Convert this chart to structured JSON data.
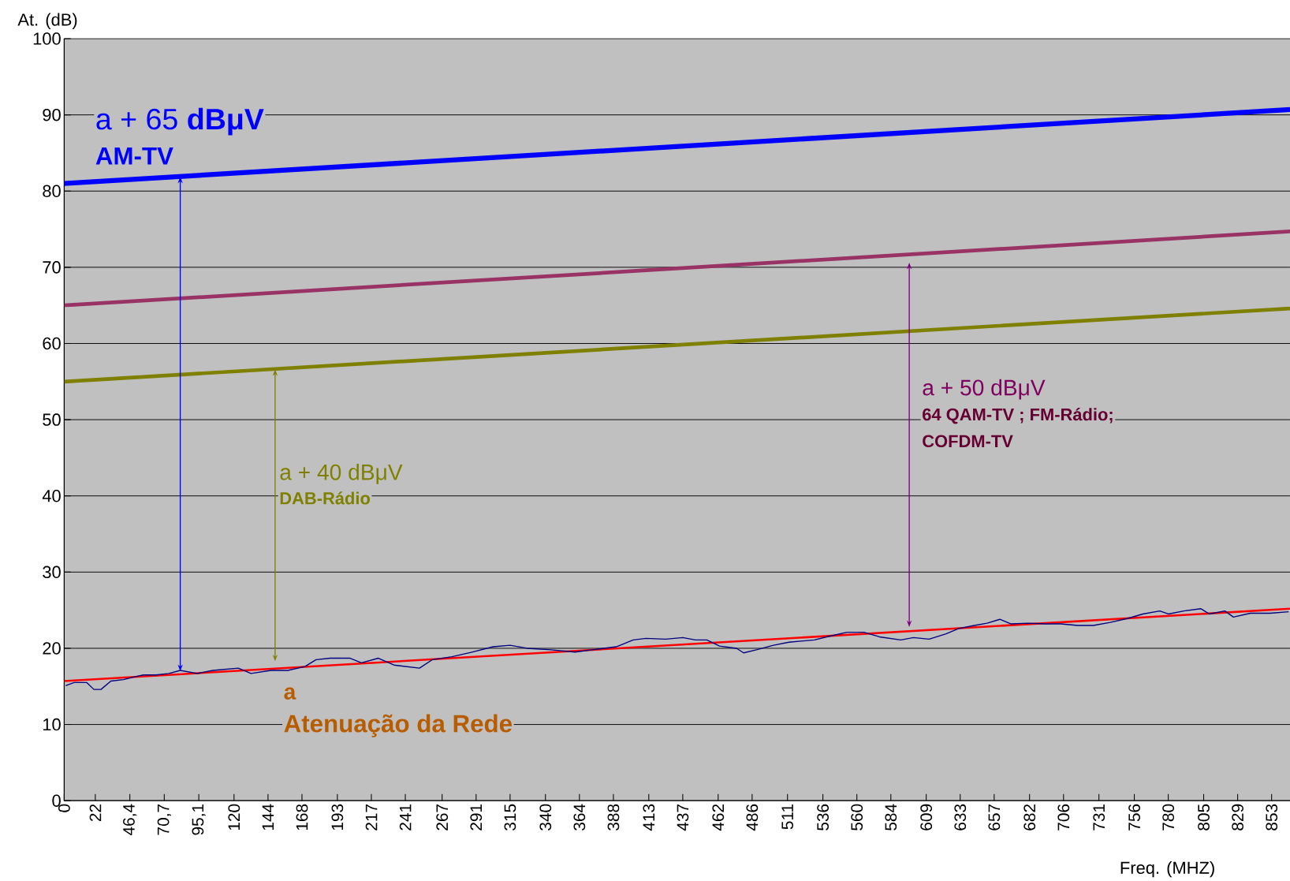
{
  "chart_data": {
    "type": "line",
    "xlabel": "Freq. (MHZ)",
    "ylabel": "At. (dB)",
    "xlim": [
      0,
      866
    ],
    "ylim": [
      0,
      100
    ],
    "xticks": [
      0,
      22,
      {
        "value": 46.4,
        "label": "46,4"
      },
      {
        "value": 70.7,
        "label": "70,7"
      },
      {
        "value": 95.1,
        "label": "95,1"
      },
      120,
      144,
      168,
      193,
      217,
      241,
      267,
      291,
      315,
      340,
      364,
      388,
      413,
      437,
      462,
      486,
      511,
      536,
      560,
      584,
      609,
      633,
      657,
      682,
      706,
      731,
      756,
      780,
      805,
      829,
      853
    ],
    "yticks": [
      0,
      10,
      20,
      30,
      40,
      50,
      60,
      70,
      80,
      90,
      100
    ],
    "grid": "y",
    "marker": "none",
    "series": [
      {
        "color": "#0000ff",
        "x": [
          0,
          866
        ],
        "values": [
          81,
          90.7
        ]
      },
      {
        "color": "#993366",
        "x": [
          0,
          866
        ],
        "values": [
          65,
          74.7
        ]
      },
      {
        "color": "#808000",
        "x": [
          0,
          866
        ],
        "values": [
          55,
          64.6
        ]
      },
      {
        "color": "#000080",
        "x": [
          1,
          7,
          16,
          21,
          26,
          33,
          42,
          51,
          56,
          65,
          74,
          82,
          94,
          105,
          123,
          132,
          146,
          158,
          170,
          178,
          188,
          202,
          210,
          222,
          233,
          251,
          260,
          274,
          288,
          303,
          315,
          327,
          344,
          361,
          373,
          390,
          402,
          411,
          425,
          437,
          446,
          454,
          463,
          475,
          480,
          489,
          501,
          512,
          530,
          541,
          553,
          565,
          576,
          591,
          600,
          611,
          623,
          632,
          643,
          652,
          661,
          669,
          681,
          693,
          704,
          716,
          727,
          739,
          751,
          762,
          774,
          780,
          791,
          803,
          809,
          820,
          826,
          838,
          852,
          865
        ],
        "values": [
          15.1,
          15.5,
          15.5,
          14.6,
          14.6,
          15.7,
          15.9,
          16.3,
          16.5,
          16.5,
          16.7,
          17.1,
          16.7,
          17.1,
          17.4,
          16.7,
          17.1,
          17.1,
          17.6,
          18.5,
          18.7,
          18.7,
          18.1,
          18.7,
          17.8,
          17.4,
          18.5,
          18.9,
          19.5,
          20.2,
          20.4,
          20.0,
          19.8,
          19.5,
          19.8,
          20.2,
          21.1,
          21.3,
          21.2,
          21.4,
          21.1,
          21.1,
          20.3,
          20.0,
          19.4,
          19.8,
          20.4,
          20.8,
          21.1,
          21.6,
          22.1,
          22.1,
          21.5,
          21.1,
          21.4,
          21.2,
          21.9,
          22.6,
          23.0,
          23.3,
          23.8,
          23.2,
          23.3,
          23.2,
          23.2,
          23.0,
          23.0,
          23.4,
          23.9,
          24.5,
          24.9,
          24.5,
          24.9,
          25.2,
          24.5,
          24.9,
          24.1,
          24.6,
          24.6,
          24.8
        ]
      },
      {
        "color": "#ff0000",
        "x": [
          0,
          866
        ],
        "values": [
          15.7,
          25.2
        ]
      }
    ],
    "annotations": [
      "a + 65 **dBμV**",
      "AM-TV",
      "a + 40 dBμV",
      "DAB-Rádio",
      "a + 50 dBμV",
      "64 QAM-TV ; FM-Rádio;",
      "COFDM-TV",
      "a",
      "Atenuação da Rede"
    ]
  }
}
